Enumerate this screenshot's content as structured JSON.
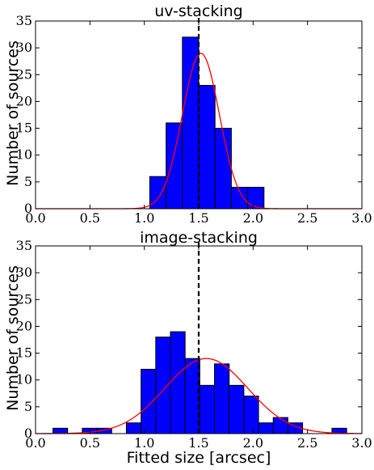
{
  "colors": {
    "bar": "#0000ff",
    "bar_edge": "#000000",
    "fit": "#ff0000",
    "marker": "#000000"
  },
  "chart_data": [
    {
      "type": "bar",
      "title": "uv-stacking",
      "xlabel": "",
      "ylabel": "Number of sources",
      "xlim": [
        0.0,
        3.0
      ],
      "ylim": [
        0,
        35
      ],
      "xticks": [
        "0.0",
        "0.5",
        "1.0",
        "1.5",
        "2.0",
        "2.5",
        "3.0"
      ],
      "yticks": [
        "0",
        "5",
        "10",
        "15",
        "20",
        "25",
        "30",
        "35"
      ],
      "bin_width": 0.15,
      "bins": [
        {
          "x": 1.05,
          "count": 6
        },
        {
          "x": 1.2,
          "count": 16
        },
        {
          "x": 1.35,
          "count": 32
        },
        {
          "x": 1.5,
          "count": 23
        },
        {
          "x": 1.65,
          "count": 15
        },
        {
          "x": 1.8,
          "count": 4
        },
        {
          "x": 1.95,
          "count": 4
        }
      ],
      "fit": {
        "type": "gaussian",
        "amplitude": 29,
        "mean": 1.52,
        "sigma": 0.17
      },
      "vline_x": 1.5
    },
    {
      "type": "bar",
      "title": "image-stacking",
      "xlabel": "Fitted size [arcsec]",
      "ylabel": "Number of sources",
      "xlim": [
        0.0,
        3.0
      ],
      "ylim": [
        0,
        35
      ],
      "xticks": [
        "0.0",
        "0.5",
        "1.0",
        "1.5",
        "2.0",
        "2.5",
        "3.0"
      ],
      "yticks": [
        "0",
        "5",
        "10",
        "15",
        "20",
        "25",
        "30",
        "35"
      ],
      "bin_width": 0.135,
      "bins": [
        {
          "x": 0.16,
          "count": 1
        },
        {
          "x": 0.43,
          "count": 1
        },
        {
          "x": 0.565,
          "count": 1
        },
        {
          "x": 0.835,
          "count": 2
        },
        {
          "x": 0.97,
          "count": 12
        },
        {
          "x": 1.105,
          "count": 18
        },
        {
          "x": 1.24,
          "count": 19
        },
        {
          "x": 1.375,
          "count": 14
        },
        {
          "x": 1.51,
          "count": 9
        },
        {
          "x": 1.645,
          "count": 13
        },
        {
          "x": 1.78,
          "count": 9
        },
        {
          "x": 1.915,
          "count": 7
        },
        {
          "x": 2.05,
          "count": 2
        },
        {
          "x": 2.185,
          "count": 3
        },
        {
          "x": 2.32,
          "count": 2
        },
        {
          "x": 2.725,
          "count": 1
        }
      ],
      "fit": {
        "type": "gaussian",
        "amplitude": 14,
        "mean": 1.57,
        "sigma": 0.38
      },
      "vline_x": 1.5
    }
  ]
}
